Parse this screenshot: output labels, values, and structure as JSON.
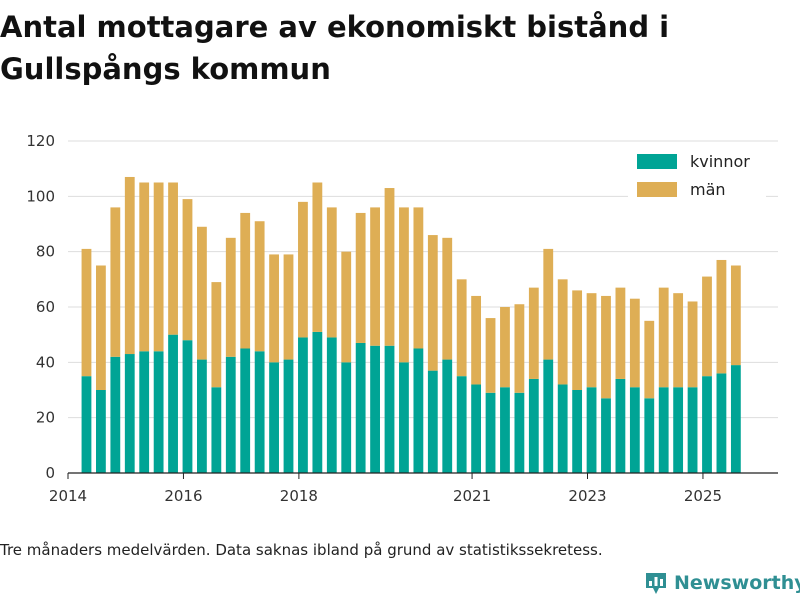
{
  "chart_data": {
    "type": "bar",
    "stacked": true,
    "title": "Antal mottagare av ekonomiskt bistånd i Gullspångs kommun",
    "xlabel": "",
    "ylabel": "",
    "ylim": [
      0,
      120
    ],
    "yticks": [
      0,
      20,
      40,
      60,
      80,
      100,
      120
    ],
    "xlim": [
      2014.0,
      2026.3
    ],
    "xticks": [
      {
        "label": "2014",
        "value": 2014.0
      },
      {
        "label": "2016",
        "value": 2016.0
      },
      {
        "label": "2018",
        "value": 2018.0
      },
      {
        "label": "2021",
        "value": 2021.0
      },
      {
        "label": "2023",
        "value": 2023.0
      },
      {
        "label": "2025",
        "value": 2025.0
      }
    ],
    "x_start": 2014.32,
    "x_step": 0.25,
    "grid": true,
    "legend": "top-right",
    "series": [
      {
        "name": "kvinnor",
        "color": "#00a495",
        "values": [
          35,
          30,
          42,
          43,
          44,
          44,
          50,
          48,
          41,
          31,
          42,
          45,
          44,
          40,
          41,
          49,
          51,
          49,
          40,
          47,
          46,
          46,
          40,
          45,
          37,
          41,
          35,
          32,
          29,
          31,
          29,
          34,
          41,
          32,
          30,
          31,
          27,
          34,
          31,
          27,
          31,
          31,
          31,
          35,
          36,
          39
        ]
      },
      {
        "name": "män",
        "color": "#deae55",
        "values": [
          46,
          45,
          54,
          64,
          61,
          61,
          55,
          51,
          48,
          38,
          43,
          49,
          47,
          39,
          38,
          49,
          54,
          47,
          40,
          47,
          50,
          57,
          56,
          51,
          49,
          44,
          35,
          32,
          27,
          29,
          32,
          33,
          40,
          38,
          36,
          34,
          37,
          33,
          32,
          28,
          36,
          34,
          31,
          36,
          41,
          36
        ]
      }
    ]
  },
  "footer": {
    "note": "Tre månaders medelvärden. Data saknas ibland på grund av statistikssekretess.",
    "brand": "Newsworthy"
  }
}
